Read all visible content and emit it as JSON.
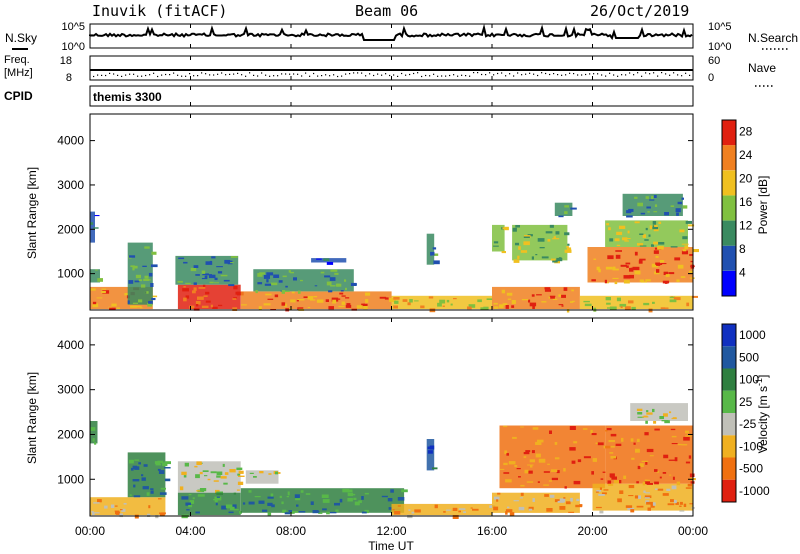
{
  "header": {
    "station": "Inuvik (fitACF)",
    "beam": "Beam 06",
    "date": "26/Oct/2019"
  },
  "nsky_panel": {
    "label_left": "N.Sky",
    "label_right": "N.Search",
    "ticks_left": [
      "10^5",
      "10^0"
    ],
    "ticks_right": [
      "10^5",
      "10^0"
    ]
  },
  "freq_panel": {
    "label_left_line1": "Freq.",
    "label_left_line2": "[MHz]",
    "label_right": "Nave",
    "ticks_left": [
      "18",
      "8"
    ],
    "ticks_right": [
      "60",
      "0"
    ]
  },
  "cpid_panel": {
    "label": "CPID",
    "text": "themis 3300"
  },
  "time_axis": {
    "title": "Time UT",
    "ticks": [
      "00:00",
      "04:00",
      "08:00",
      "12:00",
      "16:00",
      "20:00",
      "00:00"
    ]
  },
  "chart_data": [
    {
      "type": "heatmap",
      "title": "",
      "xlabel": "Time UT",
      "ylabel": "Slant Range [km]",
      "x_range_hours": [
        0,
        24
      ],
      "ylim": [
        180,
        4600
      ],
      "y_ticks": [
        1000,
        2000,
        3000,
        4000
      ],
      "colorbar": {
        "label": "Power [dB]",
        "ticks": [
          4,
          8,
          12,
          16,
          20,
          24,
          28
        ],
        "range": [
          0,
          30
        ],
        "colors": [
          "#0000ff",
          "#2050b0",
          "#3a8a60",
          "#80c040",
          "#f0c020",
          "#f08020",
          "#e02010"
        ]
      },
      "regions": [
        {
          "t": [
            0.0,
            0.2
          ],
          "r": [
            1700,
            2400
          ],
          "value": 6
        },
        {
          "t": [
            0.0,
            0.4
          ],
          "r": [
            800,
            1100
          ],
          "value": 10
        },
        {
          "t": [
            0.0,
            2.5
          ],
          "r": [
            200,
            700
          ],
          "value": 22
        },
        {
          "t": [
            1.5,
            2.5
          ],
          "r": [
            300,
            1700
          ],
          "value": 12
        },
        {
          "t": [
            3.5,
            6.0
          ],
          "r": [
            200,
            750
          ],
          "value": 26
        },
        {
          "t": [
            3.4,
            5.9
          ],
          "r": [
            750,
            1400
          ],
          "value": 10
        },
        {
          "t": [
            6.0,
            12.0
          ],
          "r": [
            200,
            600
          ],
          "value": 24
        },
        {
          "t": [
            6.5,
            10.5
          ],
          "r": [
            600,
            1100
          ],
          "value": 12
        },
        {
          "t": [
            8.8,
            10.2
          ],
          "r": [
            1250,
            1350
          ],
          "value": 6
        },
        {
          "t": [
            12.0,
            16.0
          ],
          "r": [
            200,
            500
          ],
          "value": 18
        },
        {
          "t": [
            13.4,
            13.7
          ],
          "r": [
            1200,
            1900
          ],
          "value": 12
        },
        {
          "t": [
            16.0,
            19.5
          ],
          "r": [
            200,
            700
          ],
          "value": 22
        },
        {
          "t": [
            16.0,
            16.5
          ],
          "r": [
            1500,
            2100
          ],
          "value": 14
        },
        {
          "t": [
            16.8,
            19.0
          ],
          "r": [
            1300,
            2100
          ],
          "value": 16
        },
        {
          "t": [
            18.5,
            19.2
          ],
          "r": [
            2300,
            2600
          ],
          "value": 10
        },
        {
          "t": [
            19.5,
            24.0
          ],
          "r": [
            200,
            500
          ],
          "value": 18
        },
        {
          "t": [
            19.8,
            24.0
          ],
          "r": [
            800,
            1600
          ],
          "value": 24
        },
        {
          "t": [
            20.5,
            23.8
          ],
          "r": [
            1600,
            2200
          ],
          "value": 16
        },
        {
          "t": [
            21.2,
            23.6
          ],
          "r": [
            2300,
            2800
          ],
          "value": 12
        }
      ]
    },
    {
      "type": "heatmap",
      "title": "",
      "xlabel": "Time UT",
      "ylabel": "Slant Range [km]",
      "x_range_hours": [
        0,
        24
      ],
      "ylim": [
        180,
        4600
      ],
      "y_ticks": [
        1000,
        2000,
        3000,
        4000
      ],
      "colorbar": {
        "label": "Velocity [m s^-1]",
        "ticks": [
          "1000",
          "500",
          "100",
          "25",
          "-25",
          "-100",
          "-500",
          "-1000"
        ],
        "colors": [
          "#1030c0",
          "#2058a0",
          "#2f7f40",
          "#58b848",
          "#c0c0b8",
          "#f0b020",
          "#f07010",
          "#e02010"
        ]
      },
      "regions": [
        {
          "t": [
            0.0,
            0.3
          ],
          "r": [
            1800,
            2300
          ],
          "value": 100
        },
        {
          "t": [
            0.0,
            3.0
          ],
          "r": [
            200,
            600
          ],
          "value": -100
        },
        {
          "t": [
            1.5,
            3.0
          ],
          "r": [
            600,
            1600
          ],
          "value": 100
        },
        {
          "t": [
            3.5,
            6.0
          ],
          "r": [
            700,
            1400
          ],
          "value": 0
        },
        {
          "t": [
            3.5,
            6.0
          ],
          "r": [
            200,
            700
          ],
          "value": 100
        },
        {
          "t": [
            6.0,
            12.5
          ],
          "r": [
            250,
            800
          ],
          "value": 100
        },
        {
          "t": [
            6.2,
            7.5
          ],
          "r": [
            900,
            1200
          ],
          "value": 0
        },
        {
          "t": [
            12.0,
            16.0
          ],
          "r": [
            200,
            450
          ],
          "value": -100
        },
        {
          "t": [
            13.4,
            13.7
          ],
          "r": [
            1200,
            1900
          ],
          "value": 500
        },
        {
          "t": [
            16.0,
            19.5
          ],
          "r": [
            250,
            700
          ],
          "value": -100
        },
        {
          "t": [
            16.3,
            20.5
          ],
          "r": [
            800,
            2200
          ],
          "value": -500
        },
        {
          "t": [
            20.0,
            24.0
          ],
          "r": [
            300,
            900
          ],
          "value": -100
        },
        {
          "t": [
            20.5,
            24.0
          ],
          "r": [
            900,
            2200
          ],
          "value": -500
        },
        {
          "t": [
            21.5,
            23.8
          ],
          "r": [
            2300,
            2700
          ],
          "value": 0
        }
      ]
    }
  ]
}
